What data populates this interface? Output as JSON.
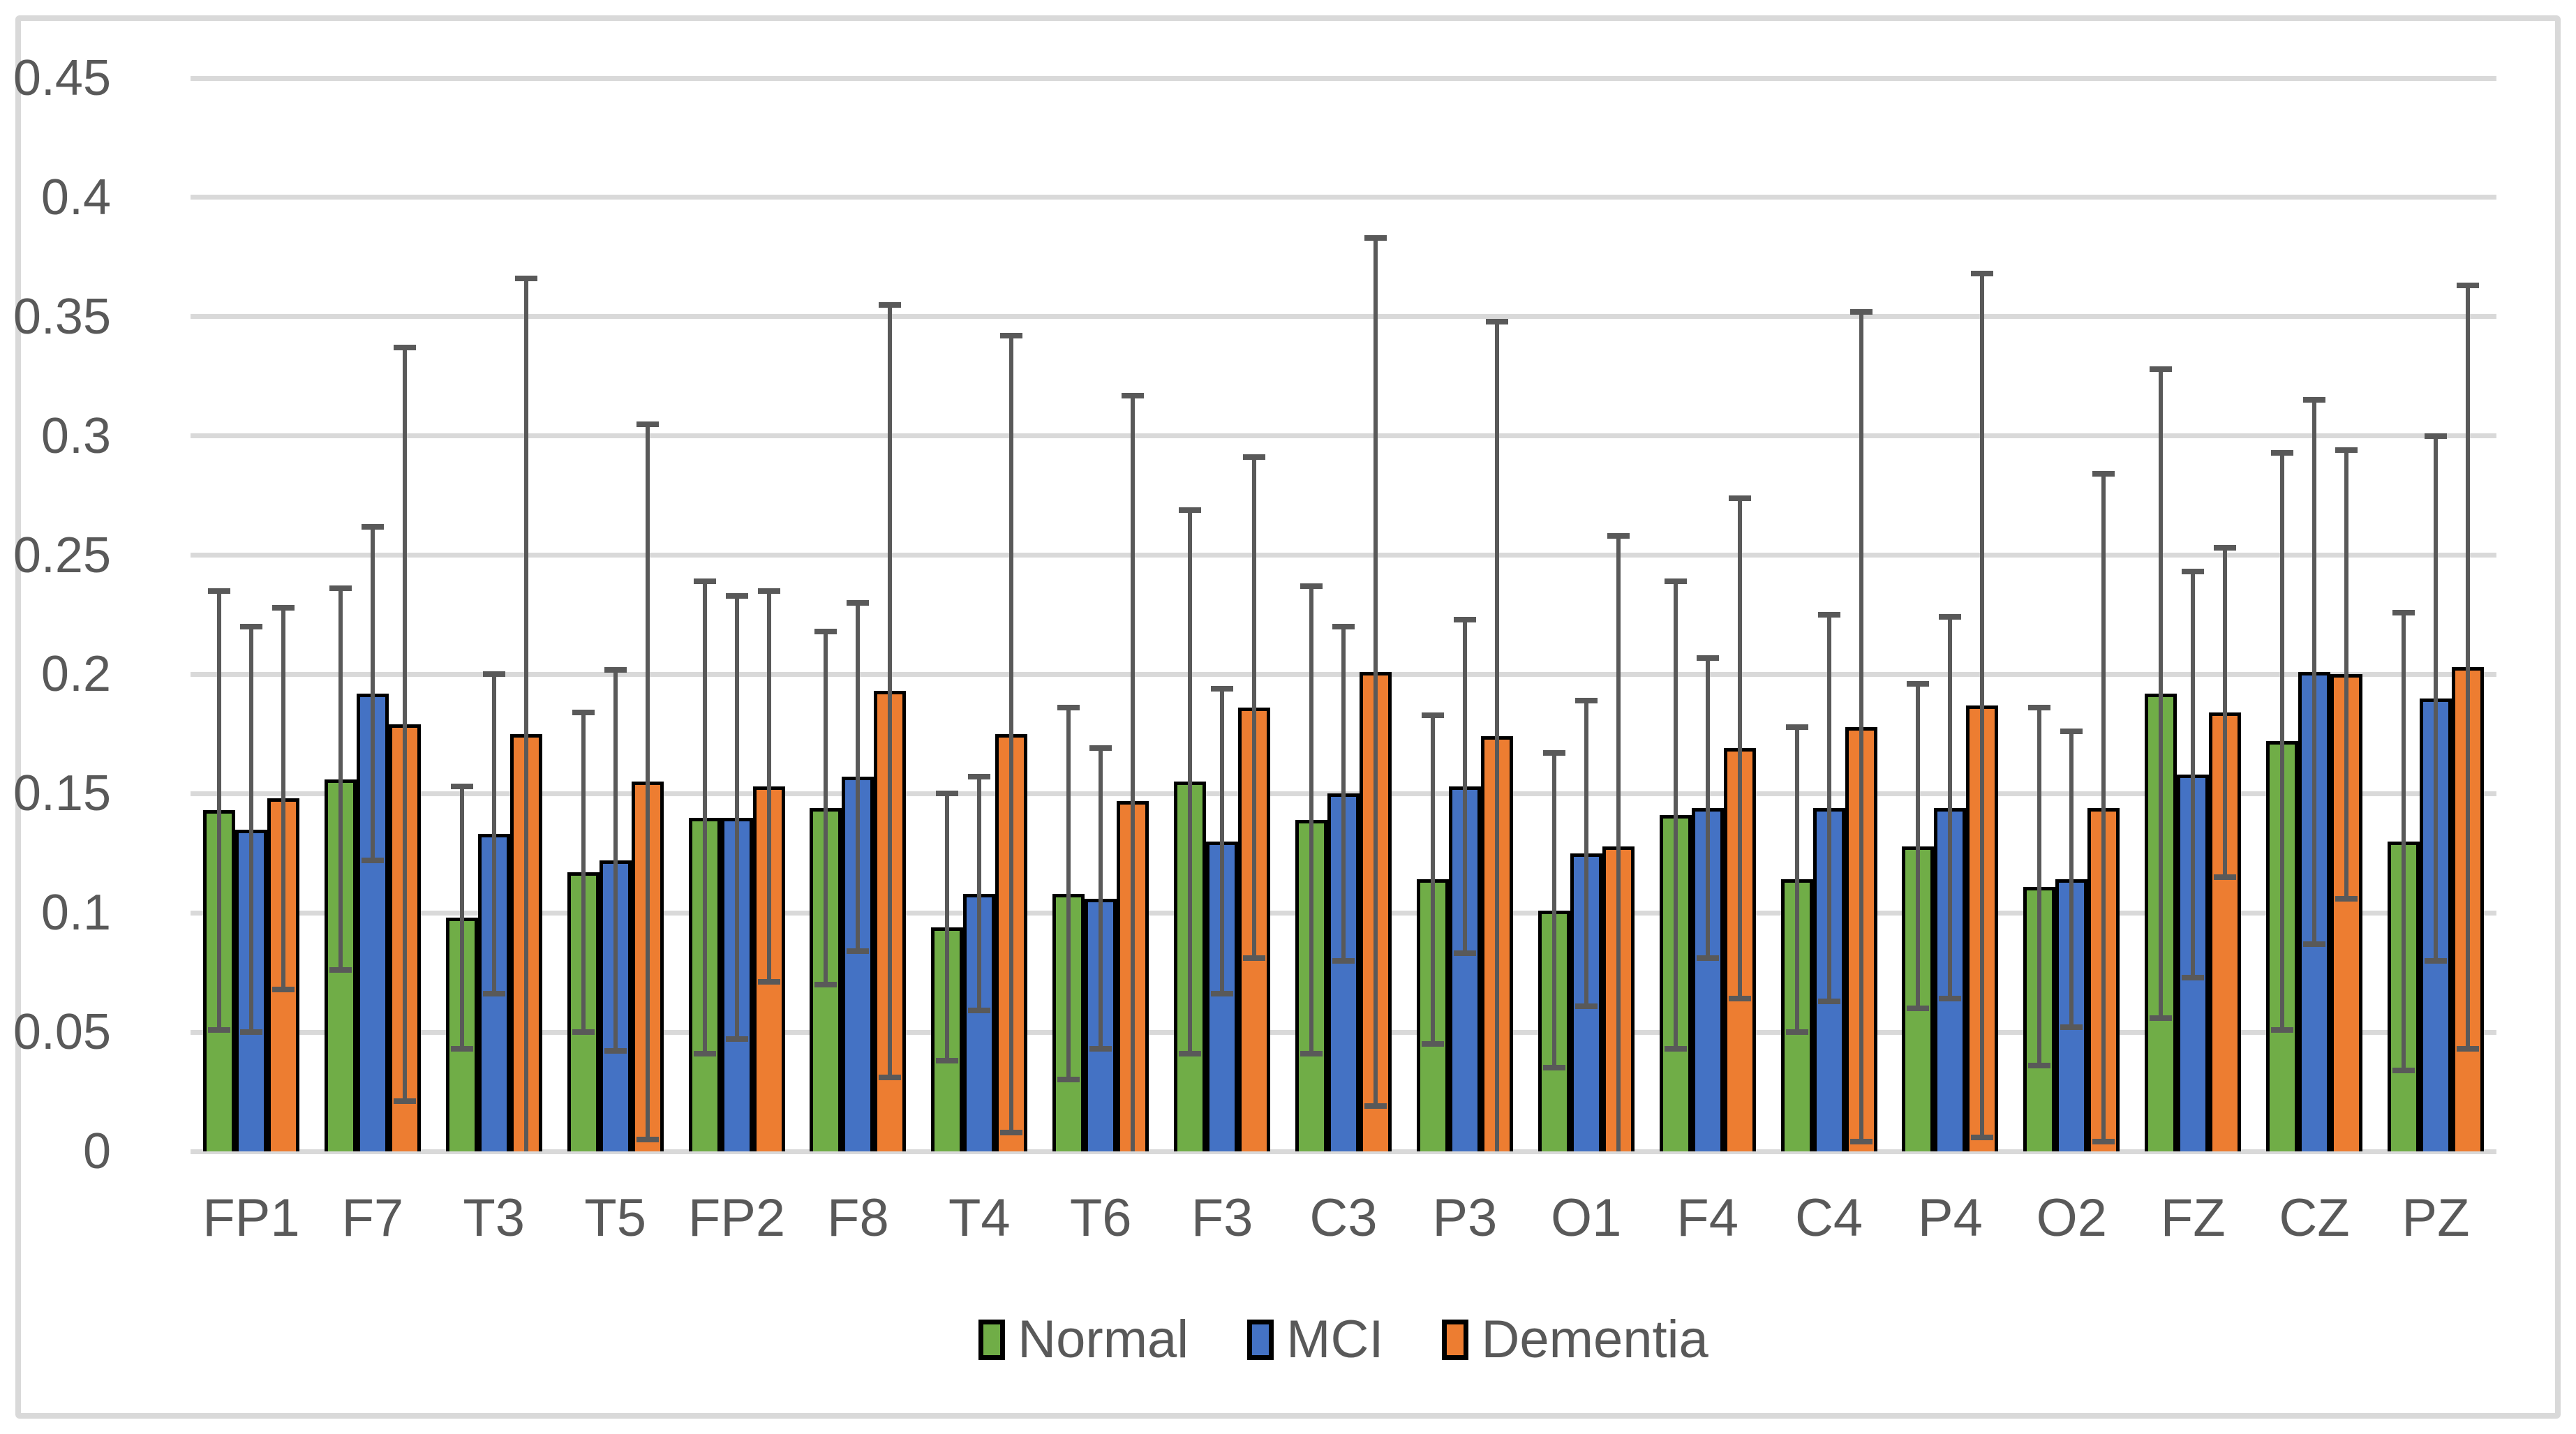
{
  "chart_data": {
    "type": "bar",
    "title": "",
    "categories": [
      "FP1",
      "F7",
      "T3",
      "T5",
      "FP2",
      "F8",
      "T4",
      "T6",
      "F3",
      "C3",
      "P3",
      "O1",
      "F4",
      "C4",
      "P4",
      "O2",
      "FZ",
      "CZ",
      "PZ"
    ],
    "series": [
      {
        "name": "Normal",
        "color": "#70AD47",
        "values": [
          0.143,
          0.156,
          0.098,
          0.117,
          0.14,
          0.144,
          0.094,
          0.108,
          0.155,
          0.139,
          0.114,
          0.101,
          0.141,
          0.114,
          0.128,
          0.111,
          0.192,
          0.172,
          0.13
        ],
        "errors": [
          0.092,
          0.08,
          0.055,
          0.067,
          0.099,
          0.074,
          0.056,
          0.078,
          0.114,
          0.098,
          0.069,
          0.066,
          0.098,
          0.064,
          0.068,
          0.075,
          0.136,
          0.121,
          0.096
        ]
      },
      {
        "name": "MCI",
        "color": "#4472C4",
        "values": [
          0.135,
          0.192,
          0.133,
          0.122,
          0.14,
          0.157,
          0.108,
          0.106,
          0.13,
          0.15,
          0.153,
          0.125,
          0.144,
          0.144,
          0.144,
          0.114,
          0.158,
          0.201,
          0.19
        ],
        "errors": [
          0.085,
          0.07,
          0.067,
          0.08,
          0.093,
          0.073,
          0.049,
          0.063,
          0.064,
          0.07,
          0.07,
          0.064,
          0.063,
          0.081,
          0.08,
          0.062,
          0.085,
          0.114,
          0.11
        ]
      },
      {
        "name": "Dementia",
        "color": "#ED7D31",
        "values": [
          0.148,
          0.179,
          0.175,
          0.155,
          0.153,
          0.193,
          0.175,
          0.147,
          0.186,
          0.201,
          0.174,
          0.128,
          0.169,
          0.178,
          0.187,
          0.144,
          0.184,
          0.2,
          0.203
        ],
        "errors": [
          0.08,
          0.158,
          0.191,
          0.15,
          0.082,
          0.162,
          0.167,
          0.17,
          0.105,
          0.182,
          0.174,
          0.13,
          0.105,
          0.174,
          0.181,
          0.14,
          0.069,
          0.094,
          0.16
        ]
      }
    ],
    "ylim": [
      0,
      0.45
    ],
    "yticks": [
      "0",
      "0.05",
      "0.1",
      "0.15",
      "0.2",
      "0.25",
      "0.3",
      "0.35",
      "0.4",
      "0.45"
    ],
    "xlabel": "",
    "ylabel": "",
    "grid": true,
    "legend_position": "bottom",
    "error_bars": {
      "symmetric": true,
      "color": "#595959"
    },
    "colors": {
      "gridline": "#D9D9D9",
      "axis_text": "#595959",
      "bar_outline": "#000000",
      "frame_border": "#D9D9D9",
      "background": "#FFFFFF"
    }
  }
}
